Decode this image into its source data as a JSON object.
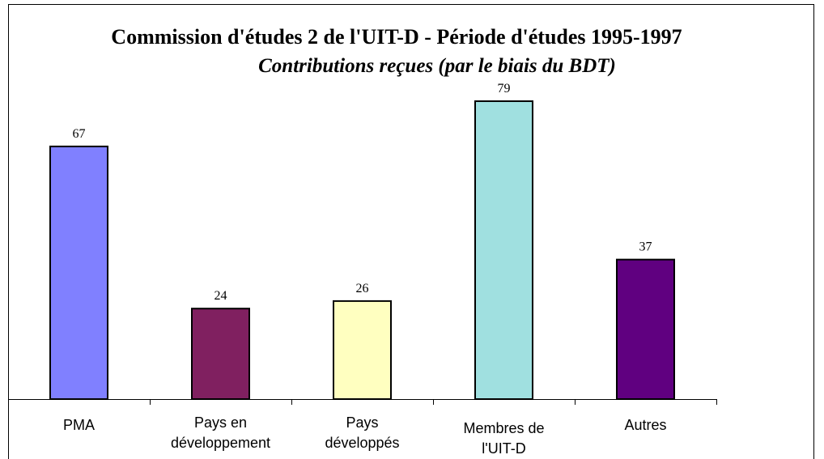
{
  "chart_data": {
    "type": "bar",
    "title": "Commission d'études 2 de l'UIT-D - Période d'études 1995-1997",
    "subtitle": "Contributions reçues (par le biais du BDT)",
    "categories": [
      [
        "PMA"
      ],
      [
        "Pays en",
        "développement"
      ],
      [
        "Pays",
        "développés"
      ],
      [
        "Membres de",
        "l'UIT-D"
      ],
      [
        "Autres"
      ]
    ],
    "values": [
      67,
      24,
      26,
      79,
      37
    ],
    "colors": [
      "#8080ff",
      "#802060",
      "#ffffc0",
      "#a0e0e0",
      "#600080"
    ]
  }
}
